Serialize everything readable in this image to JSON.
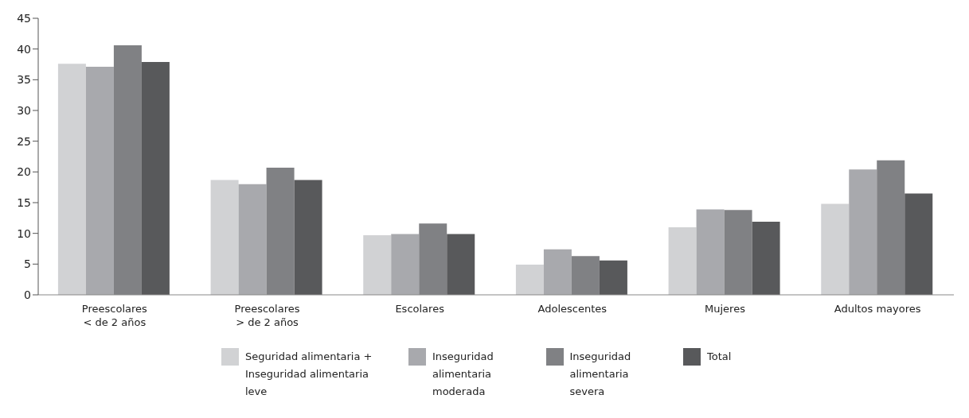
{
  "chart_data": {
    "type": "bar",
    "categories": [
      "Preescolares\n< de 2 años",
      "Preescolares\n> de 2 años",
      "Escolares",
      "Adolescentes",
      "Mujeres",
      "Adultos mayores"
    ],
    "series": [
      {
        "name": "Seguridad alimentaria + Inseguridad alimentaria leve",
        "color": "#d1d2d4",
        "values": [
          37.6,
          18.7,
          9.7,
          4.9,
          11.0,
          14.8
        ]
      },
      {
        "name": "Inseguridad alimentaria moderada",
        "color": "#a8a9ad",
        "values": [
          37.1,
          18.0,
          9.9,
          7.4,
          13.9,
          20.4
        ]
      },
      {
        "name": "Inseguridad alimentaria severa",
        "color": "#808184",
        "values": [
          40.6,
          20.7,
          11.6,
          6.3,
          13.8,
          21.9
        ]
      },
      {
        "name": "Total",
        "color": "#58595b",
        "values": [
          37.9,
          18.7,
          9.9,
          5.6,
          11.9,
          16.5
        ]
      }
    ],
    "ylim": [
      0,
      45
    ],
    "yticks": [
      0,
      5,
      10,
      15,
      20,
      25,
      30,
      35,
      40,
      45
    ],
    "grid": false,
    "legend": "bottom"
  }
}
